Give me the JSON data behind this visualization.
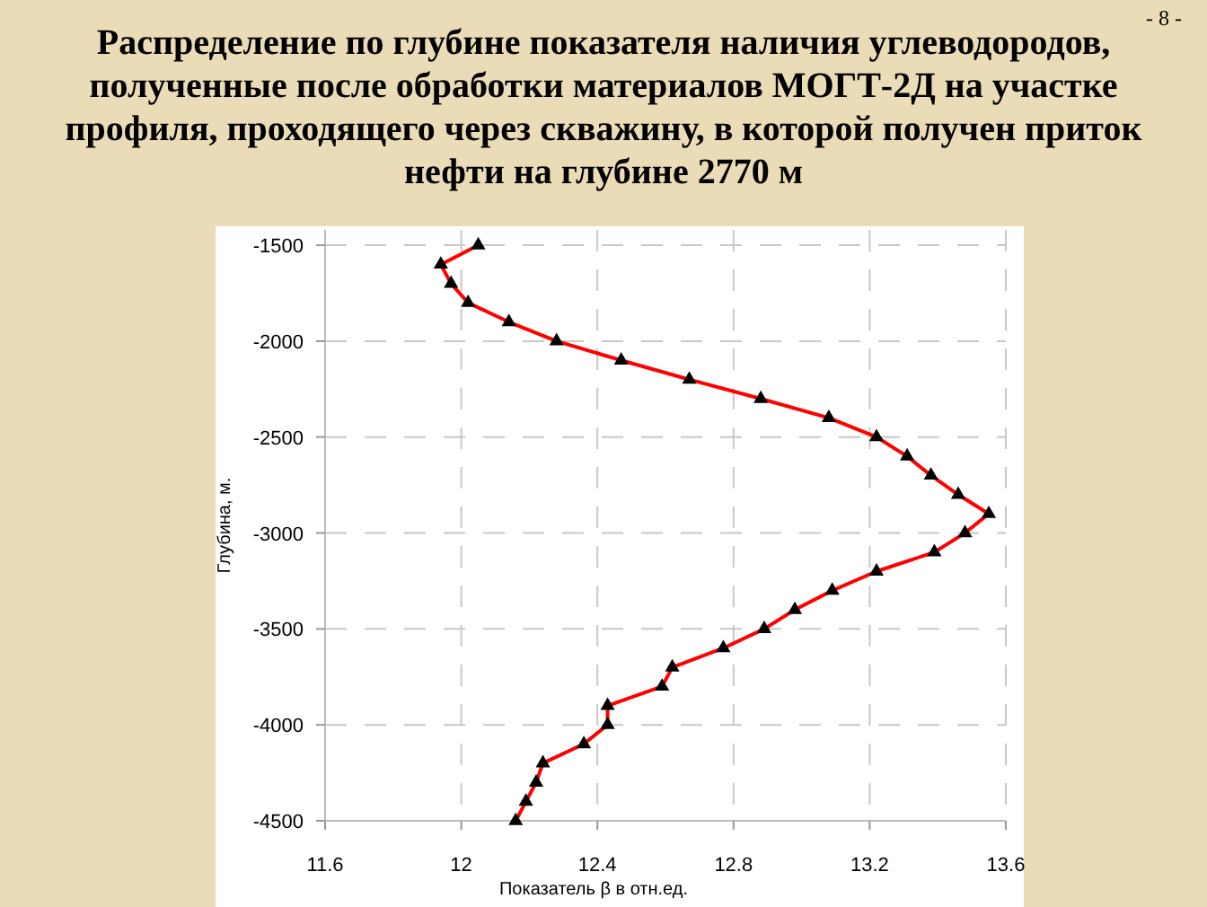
{
  "chart_data": {
    "type": "line",
    "title": "Распределение по глубине показателя наличия углеводородов, полученные после обработки материалов МОГТ-2Д на участке профиля, проходящего через скважину, в которой получен приток нефти на глубине 2770 м",
    "xlabel": "Показатель β в отн.ед.",
    "ylabel": "Глубина, м.",
    "annotations": [
      "- 8 -"
    ],
    "series": [
      {
        "color": "#ff0000",
        "x": [
          12.05,
          11.94,
          11.97,
          12.02,
          12.14,
          12.28,
          12.47,
          12.67,
          12.88,
          13.08,
          13.22,
          13.31,
          13.38,
          13.46,
          13.55,
          13.48,
          13.39,
          13.22,
          13.09,
          12.98,
          12.89,
          12.77,
          12.62,
          12.59,
          12.43,
          12.43,
          12.36,
          12.24,
          12.22,
          12.19,
          12.16
        ],
        "values": [
          -1500,
          -1600,
          -1700,
          -1800,
          -1900,
          -2000,
          -2100,
          -2200,
          -2300,
          -2400,
          -2500,
          -2600,
          -2700,
          -2800,
          -2900,
          -3000,
          -3100,
          -3200,
          -3300,
          -3400,
          -3500,
          -3600,
          -3700,
          -3800,
          -3900,
          -4000,
          -4100,
          -4200,
          -4300,
          -4400,
          -4500
        ]
      }
    ],
    "xlim": [
      11.6,
      13.6
    ],
    "xticks": [
      11.6,
      12,
      12.4,
      12.8,
      13.2,
      13.6
    ],
    "ylim": [
      -4500,
      -1420
    ],
    "yticks": [
      -4500,
      -4000,
      -3500,
      -3000,
      -2500,
      -2000,
      -1500
    ],
    "grid": true,
    "marker": "triangle",
    "line_style": "solid"
  }
}
